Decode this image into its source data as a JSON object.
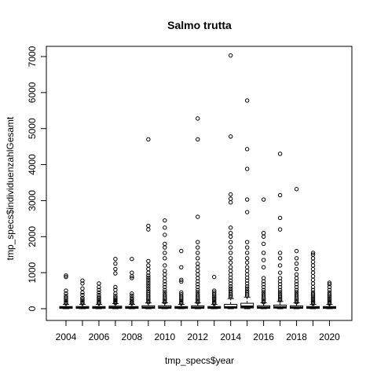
{
  "chart_data": {
    "type": "boxplot",
    "title": "Salmo trutta",
    "xlabel": "tmp_specs$year",
    "ylabel": "tmp_specs$individuenzahlGesamt",
    "x_tick_labels": [
      "2004",
      "2006",
      "2008",
      "2010",
      "2012",
      "2014",
      "2016",
      "2018",
      "2020"
    ],
    "y_tick_labels": [
      "0",
      "1000",
      "2000",
      "3000",
      "4000",
      "5000",
      "6000",
      "7000"
    ],
    "ylim": [
      -150,
      7200
    ],
    "grid": false,
    "legend": "none",
    "categories": [
      2004,
      2005,
      2006,
      2007,
      2008,
      2009,
      2010,
      2011,
      2012,
      2013,
      2014,
      2015,
      2016,
      2017,
      2018,
      2019,
      2020
    ],
    "boxes": [
      {
        "year": 2004,
        "q1": 10,
        "median": 25,
        "q3": 60,
        "whisker_high": 120,
        "outliers": [
          150,
          180,
          220,
          260,
          300,
          350,
          420,
          500,
          880,
          920
        ]
      },
      {
        "year": 2005,
        "q1": 10,
        "median": 25,
        "q3": 60,
        "whisker_high": 120,
        "outliers": [
          150,
          180,
          220,
          260,
          300,
          380,
          450,
          560,
          700,
          780
        ]
      },
      {
        "year": 2006,
        "q1": 10,
        "median": 25,
        "q3": 60,
        "whisker_high": 120,
        "outliers": [
          150,
          170,
          200,
          240,
          280,
          320,
          380,
          450,
          520,
          600,
          700
        ]
      },
      {
        "year": 2007,
        "q1": 10,
        "median": 30,
        "q3": 70,
        "whisker_high": 140,
        "outliers": [
          160,
          180,
          200,
          230,
          260,
          300,
          350,
          420,
          520,
          600,
          980,
          1100,
          1250,
          1380
        ]
      },
      {
        "year": 2008,
        "q1": 10,
        "median": 25,
        "q3": 60,
        "whisker_high": 120,
        "outliers": [
          150,
          180,
          210,
          250,
          300,
          360,
          420,
          850,
          900,
          1000,
          1380
        ]
      },
      {
        "year": 2009,
        "q1": 10,
        "median": 30,
        "q3": 80,
        "whisker_high": 160,
        "outliers": [
          180,
          220,
          260,
          300,
          350,
          400,
          450,
          500,
          560,
          620,
          680,
          740,
          800,
          860,
          920,
          1000,
          1100,
          1200,
          1320,
          2200,
          2300,
          4700
        ]
      },
      {
        "year": 2010,
        "q1": 10,
        "median": 30,
        "q3": 80,
        "whisker_high": 160,
        "outliers": [
          180,
          220,
          260,
          300,
          350,
          400,
          460,
          520,
          600,
          680,
          760,
          850,
          950,
          1050,
          1200,
          1400,
          1550,
          1700,
          1800,
          2050,
          2250,
          2450
        ]
      },
      {
        "year": 2011,
        "q1": 10,
        "median": 25,
        "q3": 60,
        "whisker_high": 120,
        "outliers": [
          150,
          180,
          220,
          260,
          300,
          350,
          400,
          450,
          750,
          800,
          1150,
          1600
        ]
      },
      {
        "year": 2012,
        "q1": 10,
        "median": 30,
        "q3": 80,
        "whisker_high": 160,
        "outliers": [
          180,
          220,
          260,
          300,
          350,
          400,
          460,
          520,
          600,
          680,
          760,
          850,
          950,
          1050,
          1150,
          1250,
          1400,
          1550,
          1700,
          1850,
          2550,
          4700,
          5280
        ]
      },
      {
        "year": 2013,
        "q1": 10,
        "median": 25,
        "q3": 60,
        "whisker_high": 120,
        "outliers": [
          140,
          170,
          200,
          240,
          280,
          320,
          360,
          400,
          450,
          500,
          880
        ]
      },
      {
        "year": 2014,
        "q1": 15,
        "median": 40,
        "q3": 120,
        "whisker_high": 280,
        "outliers": [
          320,
          360,
          400,
          450,
          500,
          560,
          620,
          700,
          780,
          860,
          950,
          1050,
          1150,
          1280,
          1400,
          1550,
          1700,
          1850,
          2000,
          2100,
          2250,
          2950,
          3050,
          3170,
          4780,
          7030
        ]
      },
      {
        "year": 2015,
        "q1": 20,
        "median": 60,
        "q3": 150,
        "whisker_high": 320,
        "outliers": [
          360,
          400,
          450,
          500,
          560,
          620,
          700,
          780,
          860,
          950,
          1050,
          1150,
          1280,
          1400,
          1550,
          1700,
          1850,
          2680,
          3030,
          3880,
          4430,
          5780
        ]
      },
      {
        "year": 2016,
        "q1": 10,
        "median": 30,
        "q3": 80,
        "whisker_high": 160,
        "outliers": [
          180,
          220,
          260,
          300,
          350,
          400,
          460,
          520,
          600,
          680,
          760,
          850,
          1150,
          1350,
          1550,
          1800,
          2000,
          2100,
          3030
        ]
      },
      {
        "year": 2017,
        "q1": 15,
        "median": 40,
        "q3": 100,
        "whisker_high": 200,
        "outliers": [
          230,
          270,
          310,
          350,
          400,
          460,
          520,
          600,
          680,
          760,
          850,
          1000,
          1200,
          1400,
          1550,
          2200,
          2520,
          3150,
          4300
        ]
      },
      {
        "year": 2018,
        "q1": 10,
        "median": 30,
        "q3": 80,
        "whisker_high": 160,
        "outliers": [
          180,
          220,
          260,
          300,
          350,
          400,
          460,
          520,
          600,
          680,
          760,
          850,
          950,
          1100,
          1250,
          1400,
          1600,
          3320
        ]
      },
      {
        "year": 2019,
        "q1": 10,
        "median": 25,
        "q3": 60,
        "whisker_high": 120,
        "outliers": [
          140,
          170,
          200,
          240,
          280,
          320,
          360,
          400,
          450,
          520,
          600,
          700,
          800,
          900,
          1000,
          1100,
          1200,
          1300,
          1400,
          1500,
          1550
        ]
      },
      {
        "year": 2020,
        "q1": 10,
        "median": 25,
        "q3": 60,
        "whisker_high": 120,
        "outliers": [
          140,
          170,
          200,
          240,
          280,
          320,
          360,
          400,
          450,
          520,
          600,
          680,
          720
        ]
      }
    ]
  }
}
